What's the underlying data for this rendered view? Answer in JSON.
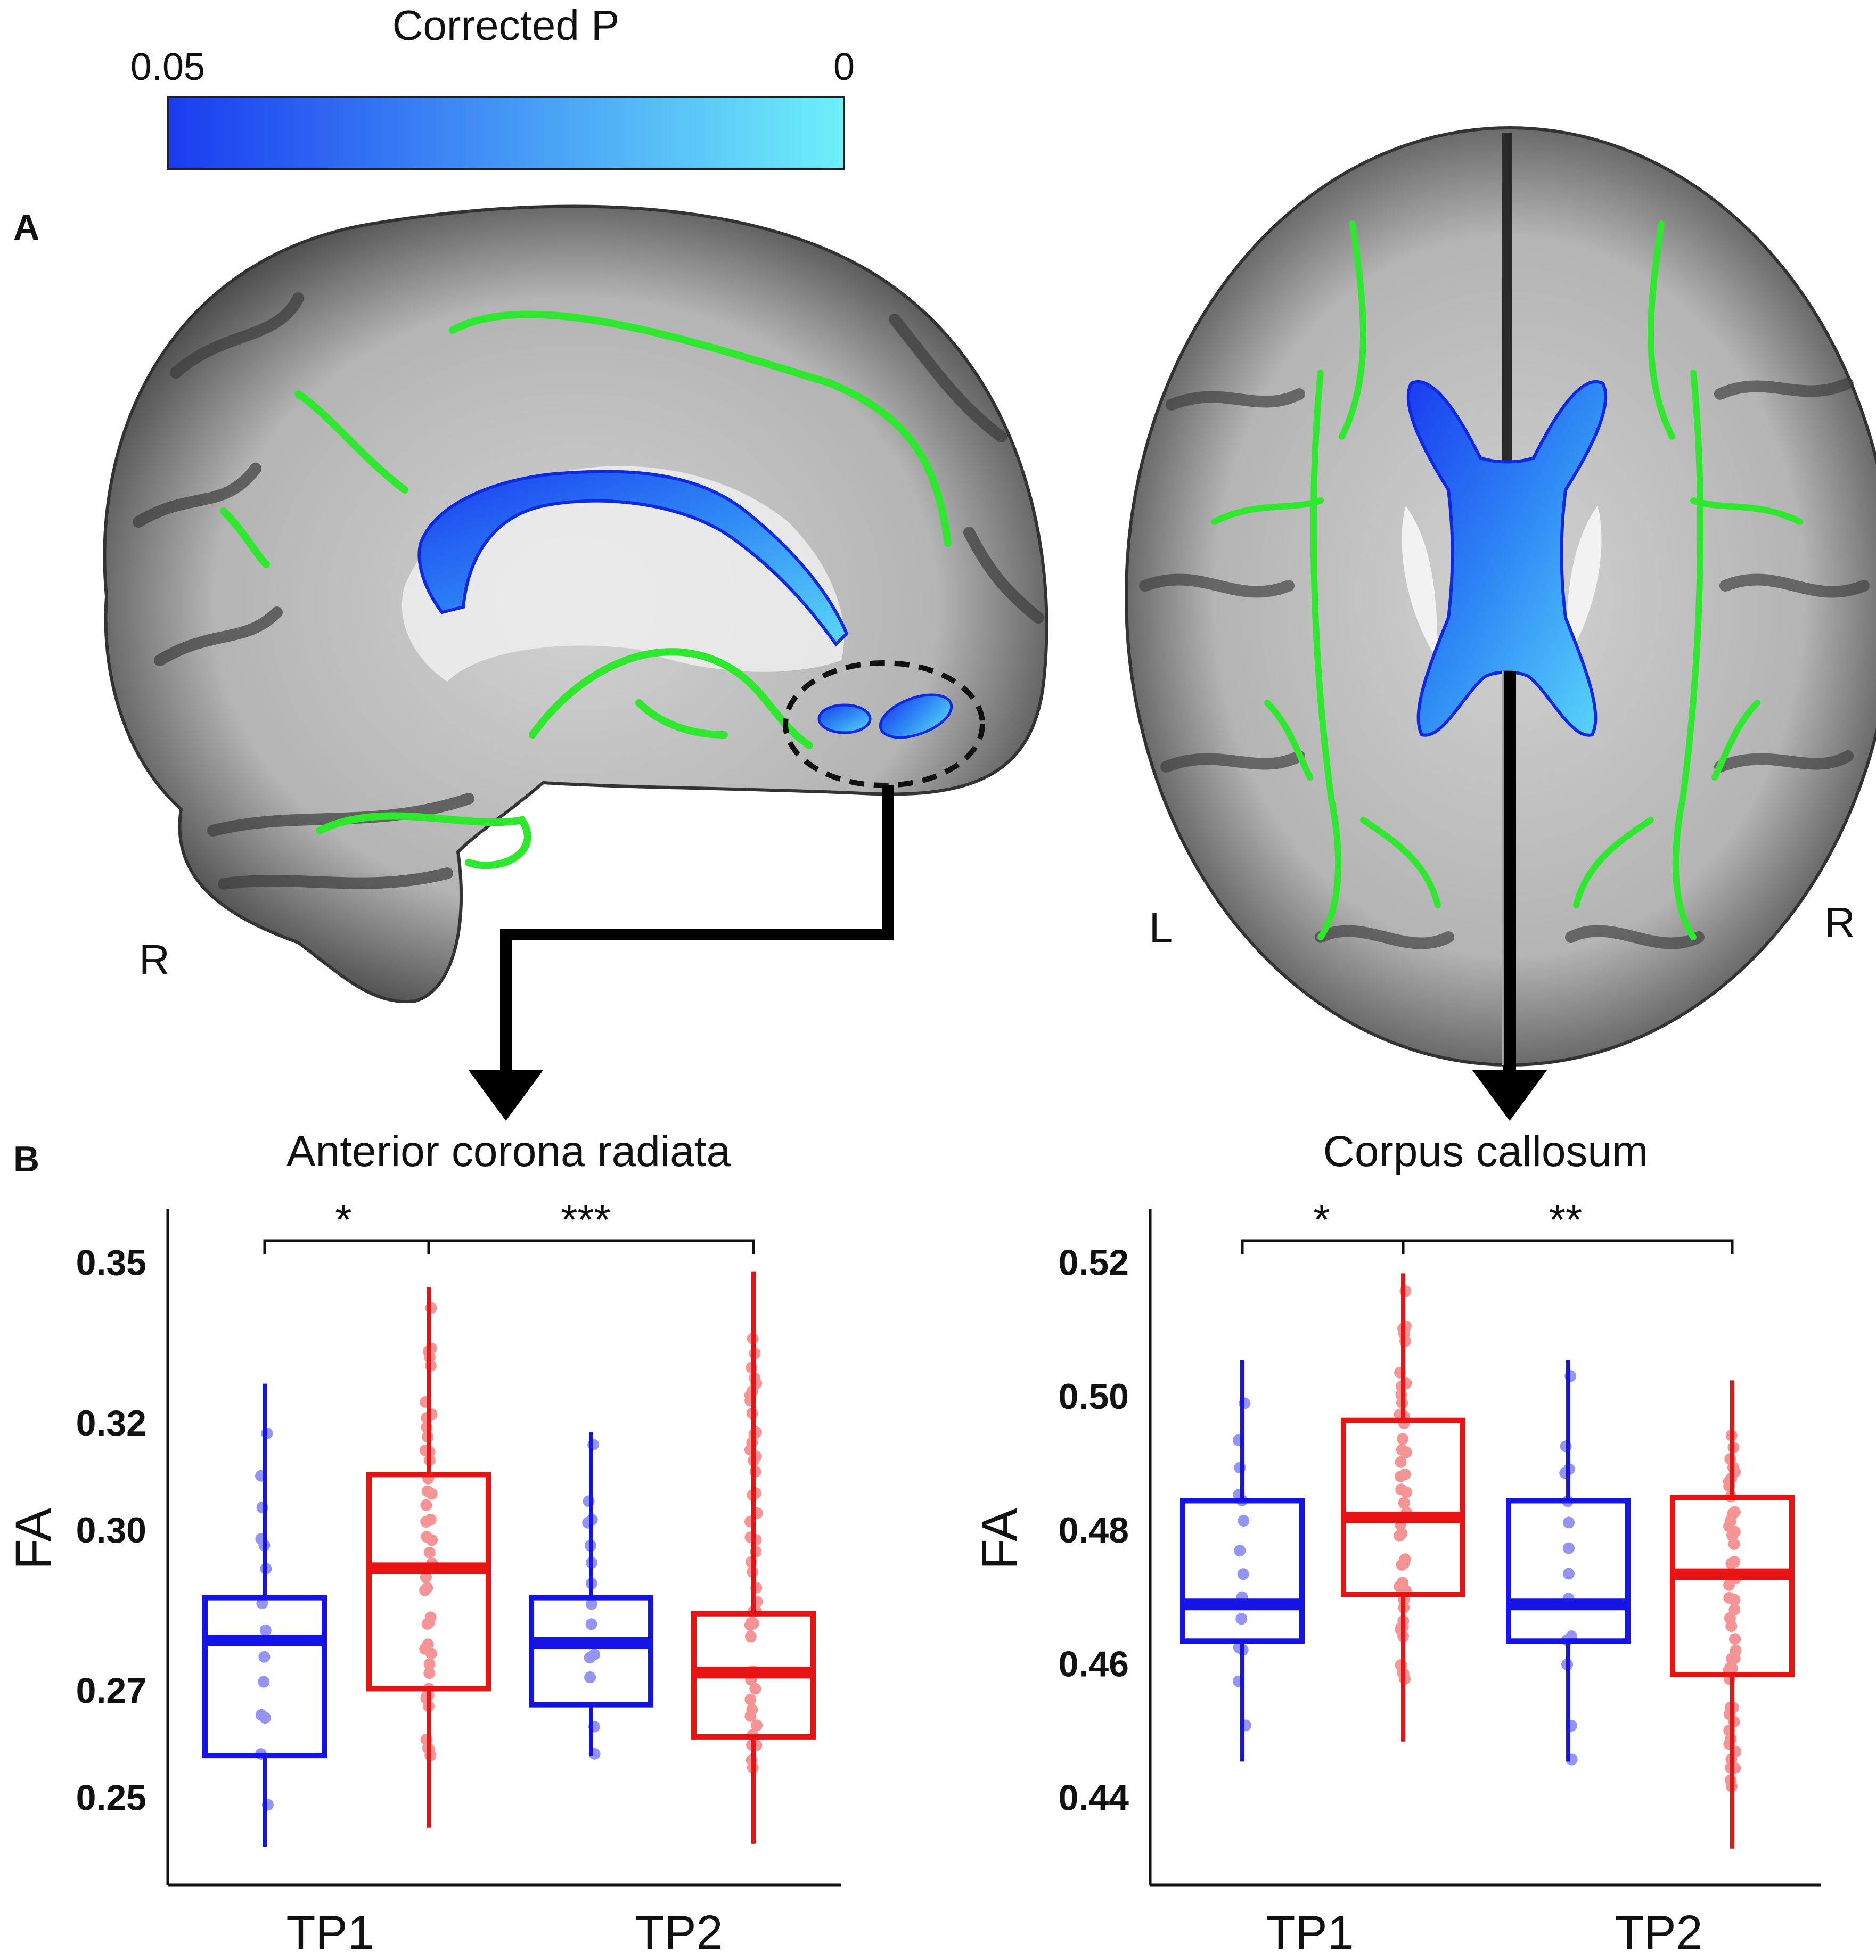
{
  "colorbar": {
    "title": "Corrected P",
    "left_label": "0.05",
    "right_label": "0",
    "color_start": "#1a3cf0",
    "color_end": "#6ef0fa"
  },
  "panel_a": {
    "label": "A",
    "sagittal": {
      "side_label": "R"
    },
    "axial": {
      "left_label": "L",
      "right_label": "R"
    }
  },
  "panel_b": {
    "label": "B"
  },
  "colors": {
    "group1": "#1414e6",
    "group2": "#e81414",
    "tract": "#2ee82e"
  },
  "chart_data": [
    {
      "type": "box",
      "title": "Anterior corona radiata",
      "ylabel": "FA",
      "categories": [
        "TP1",
        "TP2"
      ],
      "yticks": [
        "0.25",
        "0.27",
        "0.30",
        "0.32",
        "0.35"
      ],
      "ylim": [
        0.24,
        0.36
      ],
      "significance": [
        "*",
        "***"
      ],
      "boxes": [
        {
          "category": "TP1",
          "color": "blue",
          "min": 0.241,
          "q1": 0.258,
          "median": 0.2795,
          "q3": 0.2875,
          "max": 0.3275
        },
        {
          "category": "TP1",
          "color": "red",
          "min": 0.2445,
          "q1": 0.2705,
          "median": 0.293,
          "q3": 0.3105,
          "max": 0.3455
        },
        {
          "category": "TP2",
          "color": "blue",
          "min": 0.258,
          "q1": 0.2675,
          "median": 0.279,
          "q3": 0.2875,
          "max": 0.3185
        },
        {
          "category": "TP2",
          "color": "red",
          "min": 0.2415,
          "q1": 0.2615,
          "median": 0.2735,
          "q3": 0.2845,
          "max": 0.3485
        }
      ]
    },
    {
      "type": "box",
      "title": "Corpus callosum",
      "ylabel": "FA",
      "categories": [
        "TP1",
        "TP2"
      ],
      "yticks": [
        "0.44",
        "0.46",
        "0.48",
        "0.50",
        "0.52"
      ],
      "ylim": [
        0.432,
        0.528
      ],
      "significance": [
        "*",
        "**"
      ],
      "boxes": [
        {
          "category": "TP1",
          "color": "blue",
          "min": 0.4455,
          "q1": 0.4635,
          "median": 0.469,
          "q3": 0.4845,
          "max": 0.5055
        },
        {
          "category": "TP1",
          "color": "red",
          "min": 0.4485,
          "q1": 0.4705,
          "median": 0.482,
          "q3": 0.4965,
          "max": 0.5185
        },
        {
          "category": "TP2",
          "color": "blue",
          "min": 0.4455,
          "q1": 0.4635,
          "median": 0.469,
          "q3": 0.4845,
          "max": 0.5055
        },
        {
          "category": "TP2",
          "color": "red",
          "min": 0.4325,
          "q1": 0.4585,
          "median": 0.4735,
          "q3": 0.485,
          "max": 0.5025
        }
      ]
    }
  ]
}
